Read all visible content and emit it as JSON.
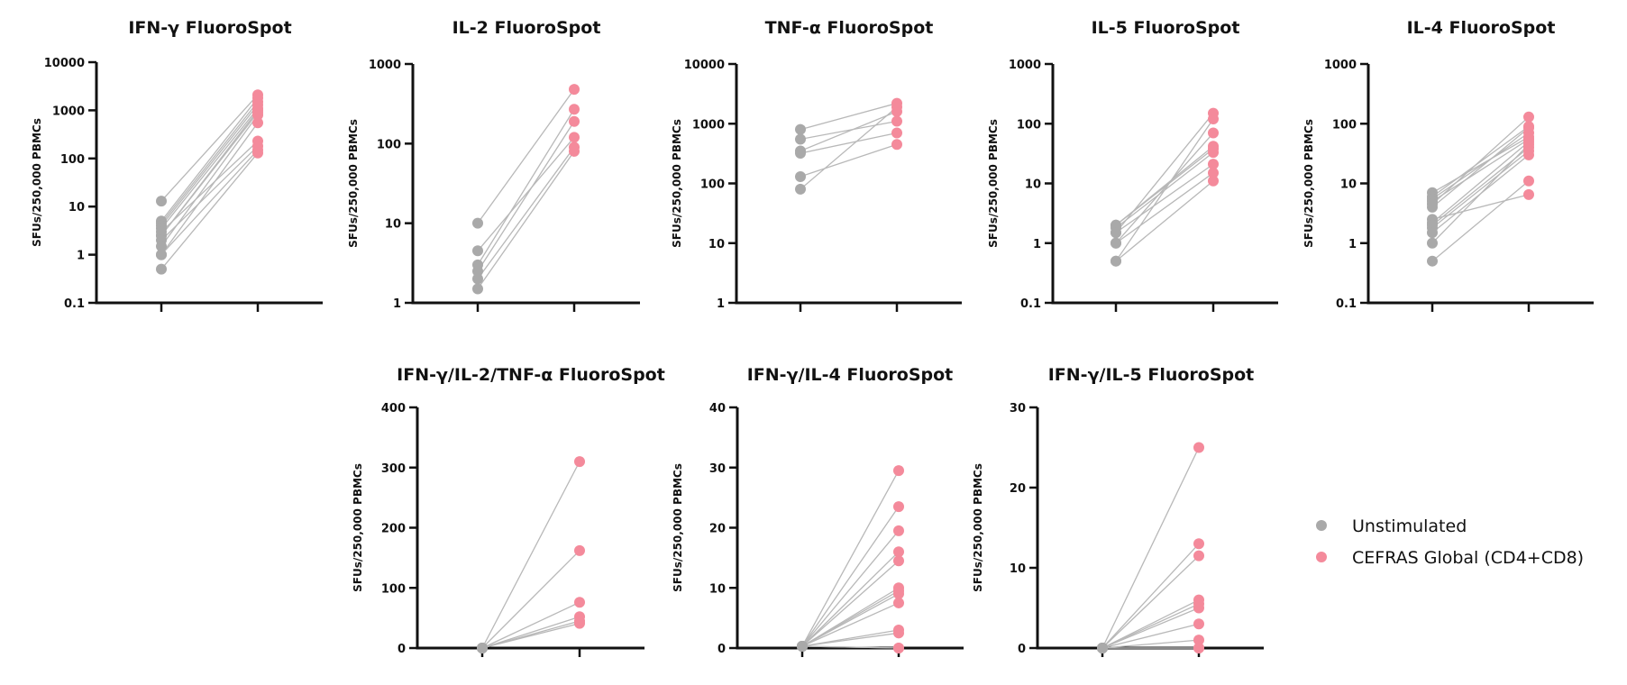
{
  "legend": {
    "placement": "right-bottom",
    "items": [
      {
        "label": "Unstimulated",
        "color": "#a9a9a9"
      },
      {
        "label": "CEFRAS Global (CD4+CD8)",
        "color": "#f48a9b"
      }
    ]
  },
  "line_color": "#b8b8b8",
  "chart_data": [
    {
      "type": "scatter",
      "title": "IFN-γ FluoroSpot",
      "ylabel": "SFUs/250,000 PBMCs",
      "xlabel": "",
      "yscale": "log",
      "ylim": [
        0.1,
        10000
      ],
      "yticks": [
        0.1,
        1,
        10,
        100,
        1000,
        10000
      ],
      "ytick_labels": [
        "0.1",
        "1",
        "10",
        "100",
        "1000",
        "10000"
      ],
      "categories": [
        "Unstimulated",
        "CEFRAS Global (CD4+CD8)"
      ],
      "paired": true,
      "series": [
        {
          "name": "Unstimulated",
          "values": [
            13,
            5,
            4.5,
            4,
            3.5,
            3,
            2.5,
            2.5,
            2,
            1.5,
            1,
            1,
            0.5
          ]
        },
        {
          "name": "CEFRAS Global (CD4+CD8)",
          "values": [
            2100,
            1800,
            1500,
            1300,
            1100,
            230,
            900,
            1000,
            180,
            800,
            150,
            550,
            130
          ]
        }
      ]
    },
    {
      "type": "scatter",
      "title": "IL-2 FluoroSpot",
      "ylabel": "SFUs/250,000 PBMCs",
      "xlabel": "",
      "yscale": "log",
      "ylim": [
        1,
        1000
      ],
      "yticks": [
        1,
        10,
        100,
        1000
      ],
      "ytick_labels": [
        "1",
        "10",
        "100",
        "1000"
      ],
      "categories": [
        "Unstimulated",
        "CEFRAS Global (CD4+CD8)"
      ],
      "paired": true,
      "series": [
        {
          "name": "Unstimulated",
          "values": [
            10,
            4.5,
            3,
            2.5,
            2,
            1.5
          ]
        },
        {
          "name": "CEFRAS Global (CD4+CD8)",
          "values": [
            480,
            120,
            270,
            190,
            90,
            80
          ]
        }
      ]
    },
    {
      "type": "scatter",
      "title": "TNF-α FluoroSpot",
      "ylabel": "SFUs/250,000 PBMCs",
      "xlabel": "",
      "yscale": "log",
      "ylim": [
        1,
        10000
      ],
      "yticks": [
        1,
        10,
        100,
        1000,
        10000
      ],
      "ytick_labels": [
        "1",
        "10",
        "100",
        "1000",
        "10000"
      ],
      "categories": [
        "Unstimulated",
        "CEFRAS Global (CD4+CD8)"
      ],
      "paired": true,
      "series": [
        {
          "name": "Unstimulated",
          "values": [
            800,
            550,
            350,
            320,
            130,
            80
          ]
        },
        {
          "name": "CEFRAS Global (CD4+CD8)",
          "values": [
            2200,
            1100,
            1600,
            700,
            450,
            1900
          ]
        }
      ]
    },
    {
      "type": "scatter",
      "title": "IL-5 FluoroSpot",
      "ylabel": "SFUs/250,000 PBMCs",
      "xlabel": "",
      "yscale": "log",
      "ylim": [
        0.1,
        1000
      ],
      "yticks": [
        0.1,
        1,
        10,
        100,
        1000
      ],
      "ytick_labels": [
        "0.1",
        "1",
        "10",
        "100",
        "1000"
      ],
      "categories": [
        "Unstimulated",
        "CEFRAS Global (CD4+CD8)"
      ],
      "paired": true,
      "series": [
        {
          "name": "Unstimulated",
          "values": [
            2,
            2,
            1.8,
            1.5,
            1.5,
            1,
            1,
            0.5,
            0.5
          ]
        },
        {
          "name": "CEFRAS Global (CD4+CD8)",
          "values": [
            38,
            42,
            33,
            150,
            21,
            70,
            15,
            120,
            11
          ]
        }
      ]
    },
    {
      "type": "scatter",
      "title": "IL-4 FluoroSpot",
      "ylabel": "SFUs/250,000 PBMCs",
      "xlabel": "",
      "yscale": "log",
      "ylim": [
        0.1,
        1000
      ],
      "yticks": [
        0.1,
        1,
        10,
        100,
        1000
      ],
      "ytick_labels": [
        "0.1",
        "1",
        "10",
        "100",
        "1000"
      ],
      "categories": [
        "Unstimulated",
        "CEFRAS Global (CD4+CD8)"
      ],
      "paired": true,
      "series": [
        {
          "name": "Unstimulated",
          "values": [
            7,
            6,
            5.5,
            5,
            4.5,
            4,
            2.5,
            2.2,
            2,
            1.8,
            1.5,
            1,
            0.5
          ]
        },
        {
          "name": "CEFRAS Global (CD4+CD8)",
          "values": [
            60,
            90,
            70,
            55,
            130,
            85,
            6.5,
            50,
            40,
            35,
            30,
            45,
            11
          ]
        }
      ]
    },
    {
      "type": "scatter",
      "title": "IFN-γ/IL-2/TNF-α FluoroSpot",
      "ylabel": "SFUs/250,000 PBMCs",
      "xlabel": "",
      "yscale": "linear",
      "ylim": [
        0,
        400
      ],
      "yticks": [
        0,
        100,
        200,
        300,
        400
      ],
      "ytick_labels": [
        "0",
        "100",
        "200",
        "300",
        "400"
      ],
      "categories": [
        "Unstimulated",
        "CEFRAS Global (CD4+CD8)"
      ],
      "paired": true,
      "series": [
        {
          "name": "Unstimulated",
          "values": [
            0,
            0,
            0,
            0,
            0,
            0
          ]
        },
        {
          "name": "CEFRAS Global (CD4+CD8)",
          "values": [
            310,
            162,
            76,
            52,
            45,
            41
          ]
        }
      ]
    },
    {
      "type": "scatter",
      "title": "IFN-γ/IL-4 FluoroSpot",
      "ylabel": "SFUs/250,000 PBMCs",
      "xlabel": "",
      "yscale": "linear",
      "ylim": [
        0,
        40
      ],
      "yticks": [
        0,
        10,
        20,
        30,
        40
      ],
      "ytick_labels": [
        "0",
        "10",
        "20",
        "30",
        "40"
      ],
      "categories": [
        "Unstimulated",
        "CEFRAS Global (CD4+CD8)"
      ],
      "paired": true,
      "series": [
        {
          "name": "Unstimulated",
          "values": [
            0.3,
            0.3,
            0.3,
            0.3,
            0.3,
            0.3,
            0.3,
            0.3,
            0.3,
            0.3,
            0.3,
            0.3,
            0.3
          ]
        },
        {
          "name": "CEFRAS Global (CD4+CD8)",
          "values": [
            29.5,
            23.5,
            19.5,
            16,
            14.5,
            10,
            9.5,
            9,
            7.5,
            3,
            2.5,
            0,
            0
          ]
        }
      ]
    },
    {
      "type": "scatter",
      "title": "IFN-γ/IL-5 FluoroSpot",
      "ylabel": "SFUs/250,000 PBMCs",
      "xlabel": "",
      "yscale": "linear",
      "ylim": [
        0,
        30
      ],
      "yticks": [
        0,
        10,
        20,
        30
      ],
      "ytick_labels": [
        "0",
        "10",
        "20",
        "30"
      ],
      "categories": [
        "Unstimulated",
        "CEFRAS Global (CD4+CD8)"
      ],
      "paired": true,
      "series": [
        {
          "name": "Unstimulated",
          "values": [
            0,
            0,
            0,
            0,
            0,
            0,
            0,
            0,
            0,
            0
          ]
        },
        {
          "name": "CEFRAS Global (CD4+CD8)",
          "values": [
            25,
            13,
            11.5,
            6,
            5.5,
            5,
            3,
            1,
            0,
            0
          ]
        }
      ]
    }
  ]
}
